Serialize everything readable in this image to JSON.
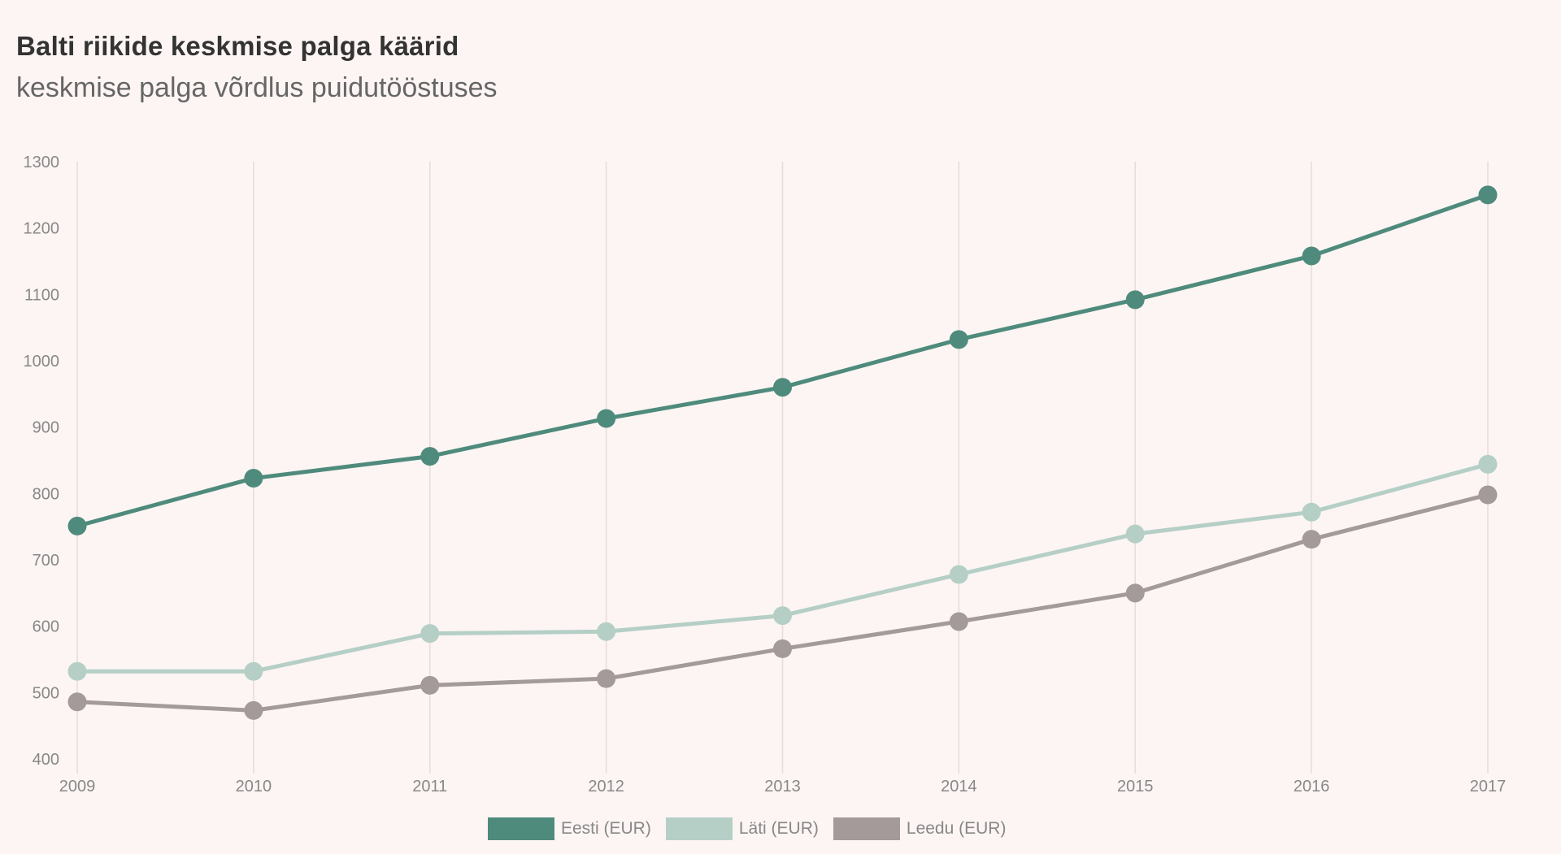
{
  "header": {
    "title": "Balti riikide keskmise palga käärid",
    "subtitle": "keskmise palga võrdlus puidutööstuses"
  },
  "colors": {
    "background": "#fcf5f3",
    "gridline": "#e6dcda",
    "eesti": "#4f8b7c",
    "lati": "#b5cfc7",
    "leedu": "#a39a99"
  },
  "legend": [
    {
      "label": "Eesti (EUR)",
      "color": "#4f8b7c"
    },
    {
      "label": "Läti (EUR)",
      "color": "#b5cfc7"
    },
    {
      "label": "Leedu (EUR)",
      "color": "#a39a99"
    }
  ],
  "chart_data": {
    "type": "line",
    "title": "Balti riikide keskmise palga käärid",
    "subtitle": "keskmise palga võrdlus puidutööstuses",
    "xlabel": "",
    "ylabel": "",
    "categories": [
      "2009",
      "2010",
      "2011",
      "2012",
      "2013",
      "2014",
      "2015",
      "2016",
      "2017"
    ],
    "yticks": [
      400,
      500,
      600,
      700,
      800,
      900,
      1000,
      1100,
      1200,
      1300
    ],
    "ylim": [
      400,
      1300
    ],
    "grid": {
      "vertical": true,
      "horizontal": false
    },
    "legend_position": "bottom",
    "series": [
      {
        "name": "Eesti (EUR)",
        "color": "#4f8b7c",
        "values": [
          751,
          823,
          856,
          913,
          960,
          1032,
          1092,
          1158,
          1250
        ]
      },
      {
        "name": "Läti (EUR)",
        "color": "#b5cfc7",
        "values": [
          532,
          532,
          589,
          592,
          616,
          678,
          739,
          772,
          844
        ]
      },
      {
        "name": "Leedu (EUR)",
        "color": "#a39a99",
        "values": [
          486,
          473,
          511,
          521,
          566,
          607,
          650,
          731,
          798
        ]
      }
    ]
  }
}
